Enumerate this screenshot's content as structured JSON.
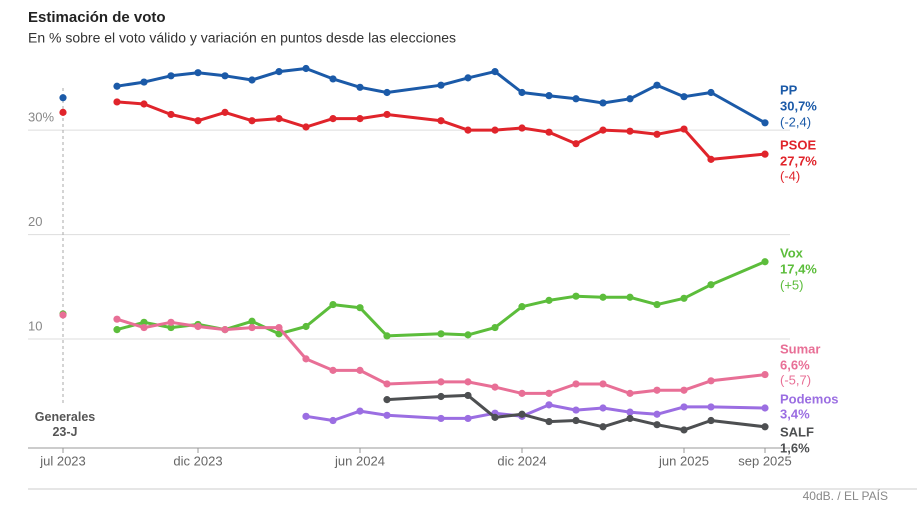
{
  "chart_data": {
    "type": "line",
    "title": "Estimación de voto",
    "subtitle": "En % sobre el voto válido y variación en puntos desde las elecciones",
    "annotation": "Generales 23-J",
    "source": "40dB. / EL PAÍS",
    "x": [
      "2023-07",
      "2023-08",
      "2023-09",
      "2023-10",
      "2023-11",
      "2023-12",
      "2024-01",
      "2024-02",
      "2024-03",
      "2024-04",
      "2024-05",
      "2024-06",
      "2024-07",
      "2024-09",
      "2024-10",
      "2024-11",
      "2024-12",
      "2025-01",
      "2025-02",
      "2025-03",
      "2025-04",
      "2025-05",
      "2025-06",
      "2025-07",
      "2025-09"
    ],
    "xlim": [
      "2023-07",
      "2025-09"
    ],
    "xticks": [
      {
        "value": "2023-07",
        "label": "jul 2023"
      },
      {
        "value": "2023-12",
        "label": "dic 2023"
      },
      {
        "value": "2024-06",
        "label": "jun 2024"
      },
      {
        "value": "2024-12",
        "label": "dic 2024"
      },
      {
        "value": "2025-06",
        "label": "jun 2025"
      },
      {
        "value": "2025-09",
        "label": "sep 2025"
      }
    ],
    "ylim": [
      0,
      37
    ],
    "yticks": [
      10,
      20,
      {
        "value": 30,
        "label": "30%"
      }
    ],
    "grid": true,
    "series": [
      {
        "name": "PP",
        "color": "#1b5aa8",
        "change": "(-2,4)",
        "values": [
          33.1,
          null,
          34.2,
          34.6,
          35.2,
          35.5,
          35.2,
          34.8,
          35.6,
          35.9,
          34.9,
          34.1,
          33.6,
          34.3,
          35.0,
          35.6,
          33.6,
          33.3,
          33.0,
          32.6,
          33.0,
          34.3,
          33.2,
          33.6,
          30.7
        ],
        "value_labels": [
          null,
          null,
          null,
          null,
          null,
          null,
          null,
          null,
          null,
          null,
          null,
          null,
          null,
          null,
          null,
          null,
          null,
          null,
          null,
          null,
          null,
          null,
          null,
          null,
          "30,7%"
        ]
      },
      {
        "name": "PSOE",
        "color": "#e0242b",
        "change": "(-4)",
        "values": [
          31.7,
          null,
          32.7,
          32.5,
          31.5,
          30.9,
          31.7,
          30.9,
          31.1,
          30.3,
          31.1,
          31.1,
          31.5,
          30.9,
          30.0,
          30.0,
          30.2,
          29.8,
          28.7,
          30.0,
          29.9,
          29.6,
          30.1,
          27.2,
          27.7
        ],
        "value_labels": [
          null,
          null,
          null,
          null,
          null,
          null,
          null,
          null,
          null,
          null,
          null,
          null,
          null,
          null,
          null,
          null,
          null,
          null,
          null,
          null,
          null,
          null,
          null,
          null,
          "27,7%"
        ]
      },
      {
        "name": "Vox",
        "color": "#5cbd3b",
        "change": "(+5)",
        "values": [
          12.4,
          null,
          10.9,
          11.6,
          11.1,
          11.4,
          10.9,
          11.7,
          10.5,
          11.2,
          13.3,
          13.0,
          10.3,
          10.5,
          10.4,
          11.1,
          13.1,
          13.7,
          14.1,
          14.0,
          14.0,
          13.3,
          13.9,
          15.2,
          17.4
        ],
        "value_labels": [
          null,
          null,
          null,
          null,
          null,
          null,
          null,
          null,
          null,
          null,
          null,
          null,
          null,
          null,
          null,
          null,
          null,
          null,
          null,
          null,
          null,
          null,
          null,
          null,
          "17,4%"
        ]
      },
      {
        "name": "Sumar",
        "color": "#e86f96",
        "change": "(-5,7)",
        "values": [
          12.3,
          null,
          11.9,
          11.1,
          11.6,
          11.2,
          10.9,
          11.1,
          11.1,
          8.1,
          7.0,
          7.0,
          5.7,
          5.9,
          5.9,
          5.4,
          4.8,
          4.8,
          5.7,
          5.7,
          4.8,
          5.1,
          5.1,
          6.0,
          6.6
        ],
        "value_labels": [
          null,
          null,
          null,
          null,
          null,
          null,
          null,
          null,
          null,
          null,
          null,
          null,
          null,
          null,
          null,
          null,
          null,
          null,
          null,
          null,
          null,
          null,
          null,
          null,
          "6,6%"
        ]
      },
      {
        "name": "Podemos",
        "color": "#9b6ee2",
        "values": [
          null,
          null,
          null,
          null,
          null,
          null,
          null,
          null,
          null,
          2.6,
          2.2,
          3.1,
          2.7,
          2.4,
          2.4,
          2.9,
          2.6,
          3.7,
          3.2,
          3.4,
          3.0,
          2.8,
          3.5,
          3.5,
          3.4
        ],
        "value_labels": [
          null,
          null,
          null,
          null,
          null,
          null,
          null,
          null,
          null,
          null,
          null,
          null,
          null,
          null,
          null,
          null,
          null,
          null,
          null,
          null,
          null,
          null,
          null,
          null,
          "3,4%"
        ]
      },
      {
        "name": "SALF",
        "color": "#4d4f51",
        "values": [
          null,
          null,
          null,
          null,
          null,
          null,
          null,
          null,
          null,
          null,
          null,
          null,
          4.2,
          4.5,
          4.6,
          2.5,
          2.8,
          2.1,
          2.2,
          1.6,
          2.4,
          1.8,
          1.3,
          2.2,
          1.6
        ],
        "value_labels": [
          null,
          null,
          null,
          null,
          null,
          null,
          null,
          null,
          null,
          null,
          null,
          null,
          null,
          null,
          null,
          null,
          null,
          null,
          null,
          null,
          null,
          null,
          null,
          null,
          "1,6%"
        ]
      }
    ]
  }
}
